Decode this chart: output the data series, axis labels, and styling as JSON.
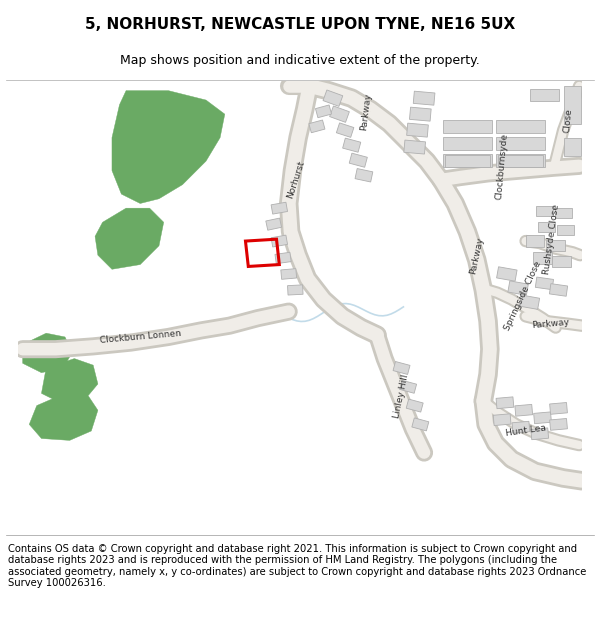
{
  "title": "5, NORHURST, NEWCASTLE UPON TYNE, NE16 5UX",
  "subtitle": "Map shows position and indicative extent of the property.",
  "footer": "Contains OS data © Crown copyright and database right 2021. This information is subject to Crown copyright and database rights 2023 and is reproduced with the permission of HM Land Registry. The polygons (including the associated geometry, namely x, y co-ordinates) are subject to Crown copyright and database rights 2023 Ordnance Survey 100026316.",
  "map_bg": "#ffffff",
  "road_outer": "#cbc8c0",
  "road_inner": "#f0ede8",
  "building_color": "#d8d8d8",
  "building_edge": "#b0b0b0",
  "green_color": "#6aaa64",
  "highlight_color": "#dd0000",
  "title_fontsize": 11,
  "subtitle_fontsize": 9,
  "footer_fontsize": 7.2,
  "label_fontsize": 6.5
}
